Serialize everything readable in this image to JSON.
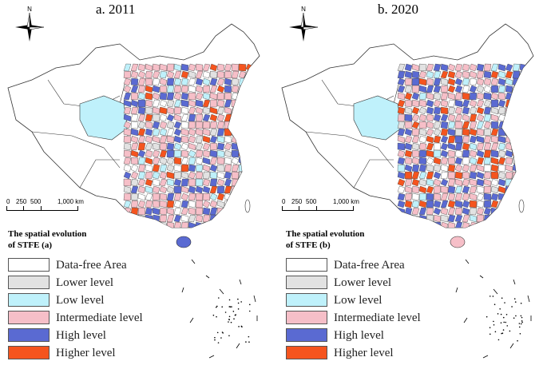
{
  "panels": [
    {
      "title": "a. 2011",
      "legend_title_line1": "The spatial evolution",
      "legend_title_line2": "of STFE (a)"
    },
    {
      "title": "b. 2020",
      "legend_title_line1": "The spatial  evolution",
      "legend_title_line2": "of STFE (b)"
    }
  ],
  "compass_label": "N",
  "scale": {
    "labels": [
      "0",
      "250",
      "500",
      "1,000 km"
    ]
  },
  "legend": [
    {
      "label": "Data-free Area",
      "color": "#ffffff"
    },
    {
      "label": "Lower level",
      "color": "#e2e2e2"
    },
    {
      "label": "Low level",
      "color": "#bff1fb"
    },
    {
      "label": "Intermediate level",
      "color": "#f6bfc8"
    },
    {
      "label": "High level",
      "color": "#5a6ad2"
    },
    {
      "label": "Higher level",
      "color": "#f5541e"
    }
  ]
}
